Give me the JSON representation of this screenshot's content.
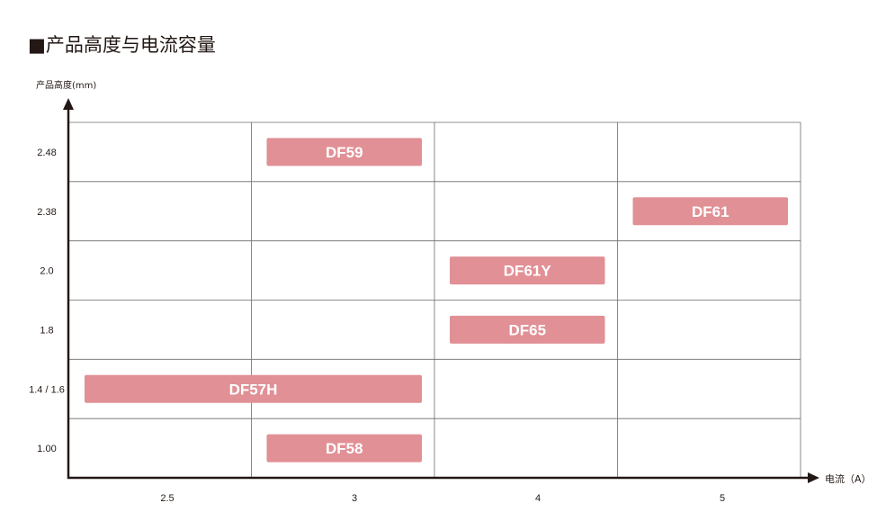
{
  "chart_data": {
    "type": "bar",
    "title": "■产品高度与电流容量",
    "xlabel": "电流（A）",
    "ylabel": "产品高度(mm)",
    "x_categories": [
      "2.5",
      "3",
      "4",
      "5"
    ],
    "y_categories": [
      "1.00",
      "1.4 / 1.6",
      "1.8",
      "2.0",
      "2.38",
      "2.48"
    ],
    "grid": true,
    "bar_color": "#e19095",
    "bars": [
      {
        "name": "DF59",
        "height": "2.48",
        "current_from": "3",
        "current_to": "3"
      },
      {
        "name": "DF61",
        "height": "2.38",
        "current_from": "5",
        "current_to": "5"
      },
      {
        "name": "DF61Y",
        "height": "2.0",
        "current_from": "4",
        "current_to": "4"
      },
      {
        "name": "DF65",
        "height": "1.8",
        "current_from": "4",
        "current_to": "4"
      },
      {
        "name": "DF57H",
        "height": "1.4 / 1.6",
        "current_from": "2.5",
        "current_to": "3"
      },
      {
        "name": "DF58",
        "height": "1.00",
        "current_from": "3",
        "current_to": "3"
      }
    ]
  }
}
